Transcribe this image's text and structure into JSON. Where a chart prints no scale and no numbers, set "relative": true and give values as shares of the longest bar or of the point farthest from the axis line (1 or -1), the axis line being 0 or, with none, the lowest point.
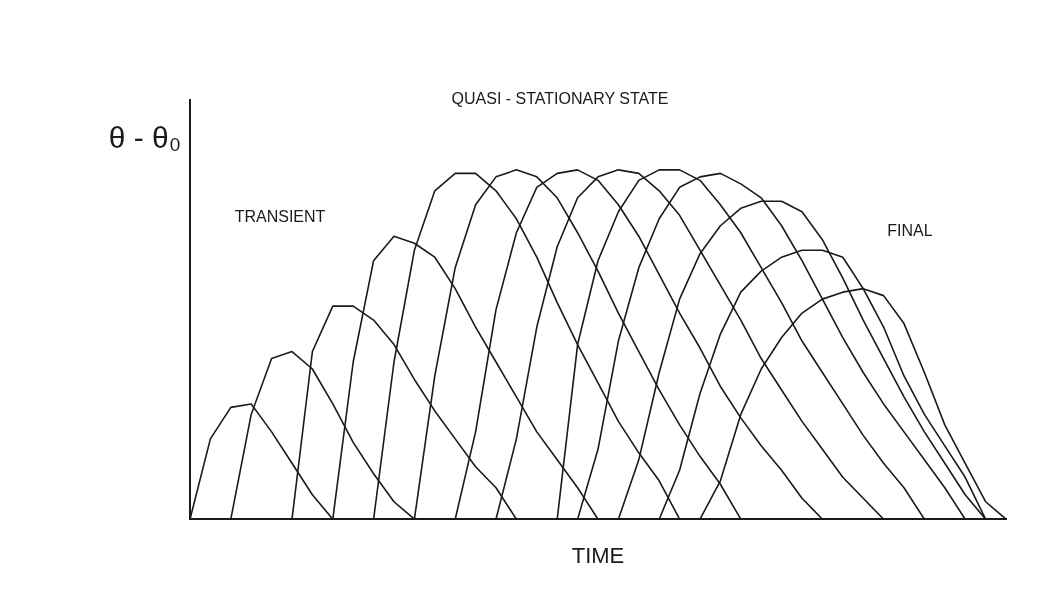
{
  "chart_data": {
    "type": "line",
    "relative": true,
    "xlabel": "TIME",
    "ylabel": "θ - θ₀",
    "annotations": [
      "TRANSIENT",
      "QUASI - STATIONARY STATE",
      "FINAL"
    ],
    "grid": false,
    "legend": false,
    "marker": "none",
    "line_style": "solid",
    "categories": [
      null,
      null,
      null,
      null,
      null,
      null,
      null,
      null,
      null,
      null,
      null,
      null,
      null,
      null,
      null,
      null,
      null,
      null,
      null,
      null,
      null,
      null,
      null,
      null,
      null,
      null,
      null,
      null,
      null,
      null,
      null,
      null,
      null,
      null,
      null,
      null,
      null,
      null,
      null,
      null,
      null
    ],
    "series": [
      {
        "color": "#1a1a1a",
        "values": [
          0,
          0.23,
          0.32,
          0.33,
          0.25,
          0.16,
          0.07,
          0,
          null,
          null,
          null,
          null,
          null,
          null,
          null,
          null,
          null,
          null,
          null,
          null,
          null,
          null,
          null,
          null,
          null,
          null,
          null,
          null,
          null,
          null,
          null,
          null,
          null,
          null,
          null,
          null,
          null,
          null,
          null,
          null,
          null
        ]
      },
      {
        "color": "#1a1a1a",
        "values": [
          null,
          null,
          0,
          0.3,
          0.46,
          0.48,
          0.43,
          0.33,
          0.22,
          0.13,
          0.05,
          0,
          null,
          null,
          null,
          null,
          null,
          null,
          null,
          null,
          null,
          null,
          null,
          null,
          null,
          null,
          null,
          null,
          null,
          null,
          null,
          null,
          null,
          null,
          null,
          null,
          null,
          null,
          null,
          null,
          null
        ]
      },
      {
        "color": "#1a1a1a",
        "values": [
          null,
          null,
          null,
          null,
          null,
          0,
          0.48,
          0.61,
          0.61,
          0.57,
          0.5,
          0.4,
          0.31,
          0.23,
          0.15,
          0.09,
          0,
          null,
          null,
          null,
          null,
          null,
          null,
          null,
          null,
          null,
          null,
          null,
          null,
          null,
          null,
          null,
          null,
          null,
          null,
          null,
          null,
          null,
          null,
          null,
          null
        ]
      },
      {
        "color": "#1a1a1a",
        "values": [
          null,
          null,
          null,
          null,
          null,
          null,
          null,
          0,
          0.45,
          0.74,
          0.81,
          0.79,
          0.75,
          0.66,
          0.55,
          0.45,
          0.35,
          0.25,
          0.17,
          0.09,
          0,
          null,
          null,
          null,
          null,
          null,
          null,
          null,
          null,
          null,
          null,
          null,
          null,
          null,
          null,
          null,
          null,
          null,
          null,
          null,
          null
        ]
      },
      {
        "color": "#1a1a1a",
        "values": [
          null,
          null,
          null,
          null,
          null,
          null,
          null,
          null,
          null,
          0,
          0.45,
          0.77,
          0.94,
          0.99,
          0.99,
          0.94,
          0.86,
          0.75,
          0.62,
          0.5,
          0.39,
          0.28,
          0.19,
          0.11,
          0,
          null,
          null,
          null,
          null,
          null,
          null,
          null,
          null,
          null,
          null,
          null,
          null,
          null,
          null,
          null,
          null
        ]
      },
      {
        "color": "#1a1a1a",
        "values": [
          null,
          null,
          null,
          null,
          null,
          null,
          null,
          null,
          null,
          null,
          null,
          0,
          0.41,
          0.72,
          0.9,
          0.98,
          1,
          0.98,
          0.92,
          0.82,
          0.71,
          0.59,
          0.48,
          0.37,
          0.27,
          0.18,
          0.1,
          0,
          null,
          null,
          null,
          null,
          null,
          null,
          null,
          null,
          null,
          null,
          null,
          null,
          null
        ]
      },
      {
        "color": "#1a1a1a",
        "values": [
          null,
          null,
          null,
          null,
          null,
          null,
          null,
          null,
          null,
          null,
          null,
          null,
          null,
          0,
          0.25,
          0.6,
          0.82,
          0.95,
          0.99,
          1,
          0.97,
          0.9,
          0.81,
          0.7,
          0.59,
          0.49,
          0.38,
          0.29,
          0.21,
          0.14,
          0.06,
          0,
          null,
          null,
          null,
          null,
          null,
          null,
          null,
          null,
          null
        ]
      },
      {
        "color": "#1a1a1a",
        "values": [
          null,
          null,
          null,
          null,
          null,
          null,
          null,
          null,
          null,
          null,
          null,
          null,
          null,
          null,
          null,
          0,
          0.23,
          0.55,
          0.78,
          0.92,
          0.98,
          1,
          0.99,
          0.94,
          0.87,
          0.77,
          0.67,
          0.57,
          0.46,
          0.37,
          0.28,
          0.2,
          0.12,
          0.06,
          0,
          null,
          null,
          null,
          null,
          null,
          null
        ]
      },
      {
        "color": "#1a1a1a",
        "values": [
          null,
          null,
          null,
          null,
          null,
          null,
          null,
          null,
          null,
          null,
          null,
          null,
          null,
          null,
          null,
          null,
          null,
          null,
          0,
          0.5,
          0.74,
          0.88,
          0.97,
          1,
          1,
          0.97,
          0.9,
          0.82,
          0.72,
          0.62,
          0.51,
          0.42,
          0.33,
          0.24,
          0.16,
          0.09,
          0,
          null,
          null,
          null,
          null
        ]
      },
      {
        "color": "#1a1a1a",
        "values": [
          null,
          null,
          null,
          null,
          null,
          null,
          null,
          null,
          null,
          null,
          null,
          null,
          null,
          null,
          null,
          null,
          null,
          null,
          null,
          0,
          0.2,
          0.51,
          0.72,
          0.86,
          0.95,
          0.98,
          0.99,
          0.96,
          0.92,
          0.84,
          0.74,
          0.63,
          0.52,
          0.42,
          0.33,
          0.25,
          0.17,
          0.09,
          0,
          null,
          null
        ]
      },
      {
        "color": "#1a1a1a",
        "values": [
          null,
          null,
          null,
          null,
          null,
          null,
          null,
          null,
          null,
          null,
          null,
          null,
          null,
          null,
          null,
          null,
          null,
          null,
          null,
          null,
          null,
          0,
          0.17,
          0.42,
          0.63,
          0.76,
          0.84,
          0.89,
          0.91,
          0.91,
          0.88,
          0.8,
          0.69,
          0.57,
          0.46,
          0.35,
          0.25,
          0.16,
          0.07,
          0,
          null
        ]
      },
      {
        "color": "#1a1a1a",
        "values": [
          null,
          null,
          null,
          null,
          null,
          null,
          null,
          null,
          null,
          null,
          null,
          null,
          null,
          null,
          null,
          null,
          null,
          null,
          null,
          null,
          null,
          null,
          null,
          0,
          0.14,
          0.36,
          0.53,
          0.65,
          0.71,
          0.75,
          0.77,
          0.77,
          0.75,
          0.66,
          0.55,
          0.41,
          0.3,
          0.21,
          0.12,
          0,
          null
        ]
      },
      {
        "color": "#1a1a1a",
        "values": [
          null,
          null,
          null,
          null,
          null,
          null,
          null,
          null,
          null,
          null,
          null,
          null,
          null,
          null,
          null,
          null,
          null,
          null,
          null,
          null,
          null,
          null,
          null,
          null,
          null,
          0,
          0.11,
          0.3,
          0.43,
          0.52,
          0.59,
          0.63,
          0.65,
          0.66,
          0.64,
          0.56,
          0.42,
          0.27,
          0.16,
          0.05,
          0
        ]
      }
    ]
  }
}
